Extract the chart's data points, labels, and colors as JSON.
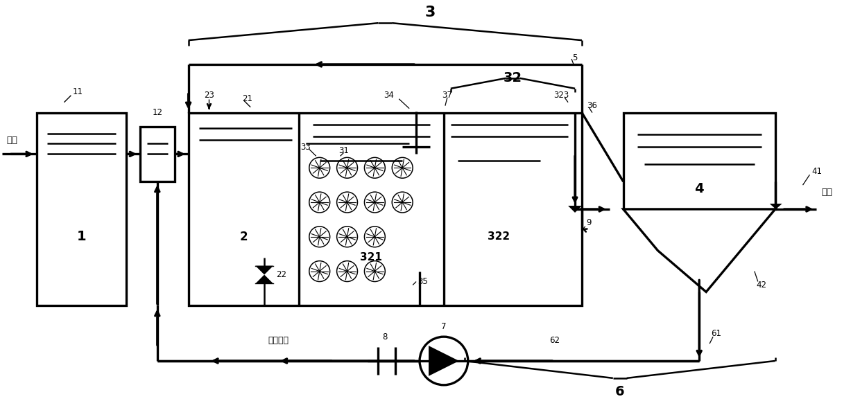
{
  "bg_color": "#ffffff",
  "fig_width": 12.4,
  "fig_height": 6.02,
  "xlim": [
    0,
    124
  ],
  "ylim": [
    0,
    60.2
  ]
}
